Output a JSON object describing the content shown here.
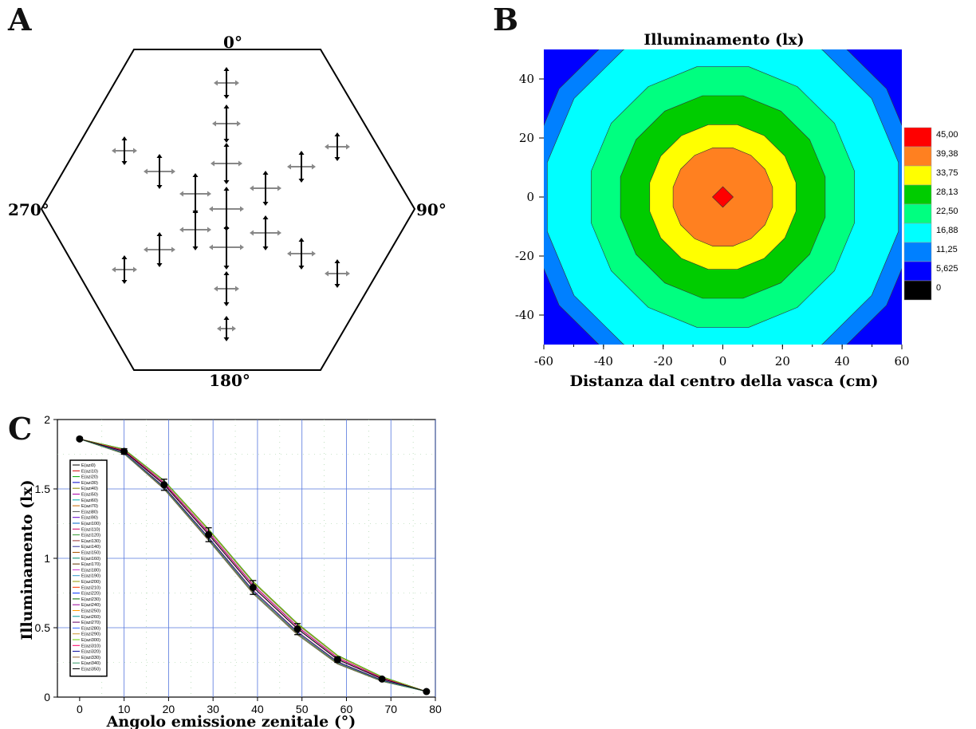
{
  "panels": {
    "a": "A",
    "b": "B",
    "c": "C"
  },
  "panel_a": {
    "directions": {
      "top": "0°",
      "right": "90°",
      "bottom": "180°",
      "left": "270°"
    }
  },
  "chart_data": [
    {
      "type": "heatmap",
      "title": "Illuminamento (lx)",
      "xlabel": "Distanza dal centro della vasca (cm)",
      "ylabel": "",
      "xlim": [
        -60,
        60
      ],
      "ylim": [
        -50,
        50
      ],
      "x_ticks": [
        "-60",
        "-40",
        "-20",
        "0",
        "20",
        "40",
        "60"
      ],
      "y_ticks": [
        "40",
        "20",
        "0",
        "-20",
        "-40"
      ],
      "legend_labels": [
        "45,00",
        "39,38",
        "33,75",
        "28,13",
        "22,50",
        "16,88",
        "11,25",
        "5,625",
        "0"
      ],
      "legend_colors": [
        "#ff0000",
        "#ff8020",
        "#ffff00",
        "#00cc00",
        "#00ff80",
        "#00ffff",
        "#0080ff",
        "#0000ff",
        "#000000"
      ],
      "contour_colors": [
        "#0000ff",
        "#0080ff",
        "#00ffff",
        "#00ff80",
        "#00cc00",
        "#ffff00",
        "#ff8020",
        "#ff0000"
      ],
      "contour_radii": [
        66,
        60,
        45,
        35,
        25,
        17,
        3.5
      ]
    },
    {
      "type": "line",
      "xlabel": "Angolo emissione zenitale (°)",
      "ylabel": "Illuminamento (lx)",
      "xlim": [
        -5,
        80
      ],
      "ylim": [
        0,
        2
      ],
      "x_ticks": [
        "0",
        "10",
        "20",
        "30",
        "40",
        "50",
        "60",
        "70",
        "80"
      ],
      "y_ticks": [
        "0",
        "0.5",
        "1",
        "1.5",
        "2"
      ],
      "legend": [
        "E(azi0)",
        "E(azi10)",
        "E(azi20)",
        "E(azi30)",
        "E(azi40)",
        "E(azi50)",
        "E(azi60)",
        "E(azi70)",
        "E(azi80)",
        "E(azi90)",
        "E(azi100)",
        "E(azi110)",
        "E(azi120)",
        "E(azi130)",
        "E(azi140)",
        "E(azi150)",
        "E(azi160)",
        "E(azi170)",
        "E(azi180)",
        "E(azi190)",
        "E(azi200)",
        "E(azi210)",
        "E(azi220)",
        "E(azi230)",
        "E(azi240)",
        "E(azi250)",
        "E(azi260)",
        "E(azi270)",
        "E(azi280)",
        "E(azi290)",
        "E(azi300)",
        "E(azi310)",
        "E(azi320)",
        "E(azi330)",
        "E(azi340)",
        "E(azi350)"
      ],
      "series_colors": [
        "#000000",
        "#cc0000",
        "#00aa00",
        "#0000cc",
        "#888800",
        "#aa00aa",
        "#00aaaa",
        "#cc6600",
        "#555555",
        "#6600cc",
        "#0066cc",
        "#cc0066",
        "#339933",
        "#993333",
        "#333399",
        "#aa5500",
        "#008866",
        "#663300",
        "#cc33cc",
        "#3399cc",
        "#999900",
        "#ff3300",
        "#0033ff",
        "#006600",
        "#990099",
        "#ff9900",
        "#009999",
        "#660066",
        "#3366ff",
        "#cc9933",
        "#66cc00",
        "#ff0066",
        "#000099",
        "#996633",
        "#339966",
        "#000000"
      ],
      "mean": {
        "x": [
          0,
          10,
          19,
          29,
          39,
          49,
          58,
          68,
          78
        ],
        "y": [
          1.86,
          1.77,
          1.53,
          1.17,
          0.79,
          0.49,
          0.27,
          0.13,
          0.04
        ],
        "err": [
          0.01,
          0.02,
          0.04,
          0.05,
          0.05,
          0.04,
          0.02,
          0.01,
          0.01
        ]
      }
    }
  ]
}
